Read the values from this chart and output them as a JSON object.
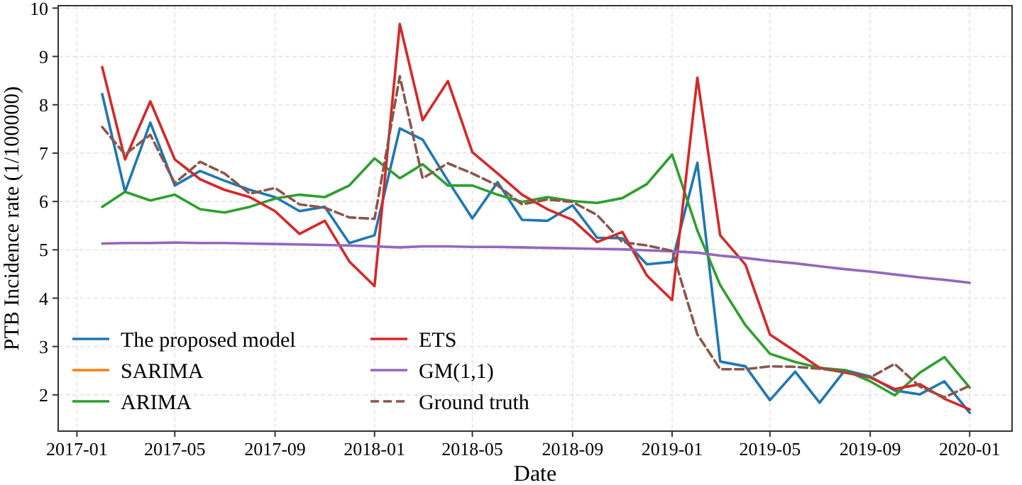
{
  "chart_data": {
    "type": "line",
    "xlabel": "Date",
    "ylabel": "PTB Incidence rate (1/100000)",
    "x": [
      "2017-02",
      "2017-03",
      "2017-04",
      "2017-05",
      "2017-06",
      "2017-07",
      "2017-08",
      "2017-09",
      "2017-10",
      "2017-11",
      "2017-12",
      "2018-01",
      "2018-02",
      "2018-03",
      "2018-04",
      "2018-05",
      "2018-06",
      "2018-07",
      "2018-08",
      "2018-09",
      "2018-10",
      "2018-11",
      "2018-12",
      "2019-01",
      "2019-02",
      "2019-03",
      "2019-04",
      "2019-05",
      "2019-06",
      "2019-07",
      "2019-08",
      "2019-09",
      "2019-10",
      "2019-11",
      "2019-12",
      "2020-01"
    ],
    "xlim": [
      "2016-12-09",
      "2020-02-22"
    ],
    "xticks": [
      {
        "value": "2017-01",
        "label": "2017-01"
      },
      {
        "value": "2017-05",
        "label": "2017-05"
      },
      {
        "value": "2017-09",
        "label": "2017-09"
      },
      {
        "value": "2018-01",
        "label": "2018-01"
      },
      {
        "value": "2018-05",
        "label": "2018-05"
      },
      {
        "value": "2018-09",
        "label": "2018-09"
      },
      {
        "value": "2019-01",
        "label": "2019-01"
      },
      {
        "value": "2019-05",
        "label": "2019-05"
      },
      {
        "value": "2019-09",
        "label": "2019-09"
      },
      {
        "value": "2020-01",
        "label": "2020-01"
      }
    ],
    "ylim": [
      1.25,
      10.05
    ],
    "yticks": [
      2,
      3,
      4,
      5,
      6,
      7,
      8,
      9,
      10
    ],
    "grid": true,
    "legend": "bottom left",
    "marker": "none",
    "series": [
      {
        "name": "SARIMA",
        "color": "#ff7f0e",
        "values": [
          null,
          null,
          null,
          null,
          null,
          null,
          null,
          null,
          null,
          null,
          null,
          null,
          null,
          null,
          null,
          null,
          null,
          null,
          null,
          null,
          null,
          null,
          null,
          null,
          null,
          null,
          null,
          null,
          null,
          null,
          null,
          null,
          null,
          null,
          null,
          null
        ]
      },
      {
        "name": "The proposed model",
        "color": "#1f77b4",
        "values": [
          8.22,
          6.2,
          7.63,
          6.33,
          6.63,
          6.43,
          6.24,
          6.09,
          5.8,
          5.89,
          5.14,
          5.3,
          7.51,
          7.28,
          6.43,
          5.65,
          6.4,
          5.62,
          5.6,
          5.92,
          5.25,
          5.24,
          4.7,
          4.75,
          6.8,
          2.69,
          2.59,
          1.89,
          2.48,
          1.84,
          2.51,
          2.38,
          2.09,
          2.01,
          2.28,
          1.63
        ]
      },
      {
        "name": "ARIMA",
        "color": "#2ca02c",
        "values": [
          5.89,
          6.2,
          6.02,
          6.14,
          5.84,
          5.77,
          5.89,
          6.06,
          6.14,
          6.09,
          6.33,
          6.89,
          6.48,
          6.77,
          6.33,
          6.33,
          6.14,
          5.99,
          6.09,
          6.01,
          5.97,
          6.07,
          6.36,
          6.97,
          5.4,
          4.27,
          3.44,
          2.85,
          2.68,
          2.56,
          2.51,
          2.28,
          1.99,
          2.46,
          2.78,
          2.15
        ]
      },
      {
        "name": "ETS",
        "color": "#d62728",
        "values": [
          8.78,
          6.87,
          8.07,
          6.87,
          6.46,
          6.24,
          6.09,
          5.8,
          5.33,
          5.6,
          4.76,
          4.25,
          9.67,
          7.68,
          8.49,
          7.02,
          6.58,
          6.14,
          5.84,
          5.62,
          5.16,
          5.37,
          4.47,
          3.96,
          8.56,
          5.3,
          4.69,
          3.25,
          2.9,
          2.56,
          2.46,
          2.36,
          2.12,
          2.22,
          1.92,
          1.7
        ]
      },
      {
        "name": "GM(1,1)",
        "color": "#9467bd",
        "values": [
          5.13,
          5.14,
          5.14,
          5.15,
          5.14,
          5.14,
          5.13,
          5.12,
          5.11,
          5.1,
          5.09,
          5.07,
          5.05,
          5.07,
          5.07,
          5.06,
          5.06,
          5.05,
          5.04,
          5.03,
          5.02,
          5.01,
          4.99,
          4.97,
          4.94,
          4.88,
          4.83,
          4.77,
          4.72,
          4.66,
          4.6,
          4.55,
          4.49,
          4.43,
          4.38,
          4.32
        ]
      },
      {
        "name": "Ground truth",
        "color": "#8c564b",
        "line_style": "dashed",
        "values": [
          7.54,
          6.97,
          7.38,
          6.38,
          6.82,
          6.58,
          6.16,
          6.28,
          5.94,
          5.87,
          5.67,
          5.64,
          8.59,
          6.48,
          6.79,
          6.58,
          6.33,
          5.94,
          6.04,
          5.99,
          5.72,
          5.16,
          5.09,
          4.98,
          3.25,
          2.53,
          2.53,
          2.59,
          2.58,
          2.54,
          2.48,
          2.36,
          2.64,
          2.17,
          1.95,
          2.19
        ]
      }
    ]
  }
}
